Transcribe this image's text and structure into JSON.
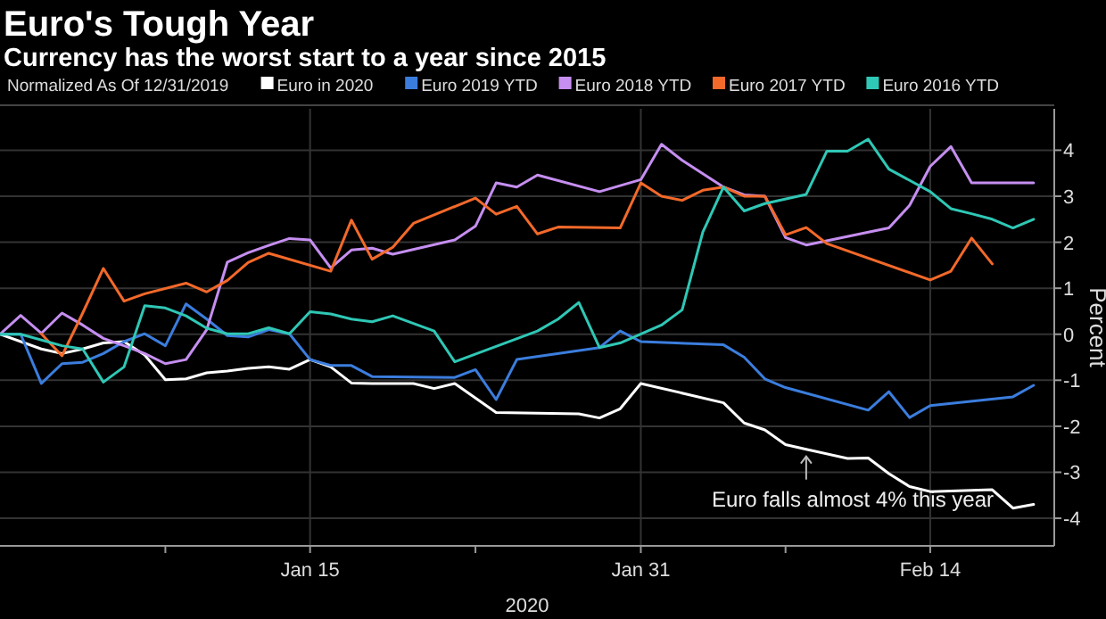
{
  "chart_data": {
    "type": "line",
    "title": "Euro's Tough Year",
    "subtitle": "Currency has the worst start to a year since 2015",
    "legend_title": "Normalized As Of 12/31/2019",
    "xlabel": "2020",
    "ylabel": "Percent",
    "legend": "top",
    "grid": true,
    "line_style": "solid",
    "xlim": [
      "2019-12-31",
      "2020-02-20"
    ],
    "xticks": [
      {
        "value": "2020-01-08",
        "label": null
      },
      {
        "value": "2020-01-15",
        "label": "Jan 15"
      },
      {
        "value": "2020-01-23",
        "label": null
      },
      {
        "value": "2020-01-31",
        "label": "Jan 31"
      },
      {
        "value": "2020-02-07",
        "label": null
      },
      {
        "value": "2020-02-14",
        "label": "Feb 14"
      }
    ],
    "ylim": [
      -4.6,
      4.9
    ],
    "yticks": [
      -4,
      -3,
      -2,
      -1,
      0,
      1,
      2,
      3,
      4
    ],
    "annotations": [
      {
        "text": "Euro falls almost 4% this year",
        "x": "2020-02-08",
        "y": -2.5
      }
    ],
    "series": [
      {
        "name": "Euro in 2020",
        "color": "#ffffff",
        "x": [
          "2019-12-31",
          "2020-01-02",
          "2020-01-03",
          "2020-01-04",
          "2020-01-05",
          "2020-01-06",
          "2020-01-07",
          "2020-01-08",
          "2020-01-09",
          "2020-01-10",
          "2020-01-11",
          "2020-01-12",
          "2020-01-13",
          "2020-01-14",
          "2020-01-15",
          "2020-01-16",
          "2020-01-17",
          "2020-01-18",
          "2020-01-20",
          "2020-01-21",
          "2020-01-22",
          "2020-01-24",
          "2020-01-28",
          "2020-01-29",
          "2020-01-30",
          "2020-01-31",
          "2020-02-04",
          "2020-02-05",
          "2020-02-06",
          "2020-02-07",
          "2020-02-08",
          "2020-02-10",
          "2020-02-11",
          "2020-02-12",
          "2020-02-13",
          "2020-02-14",
          "2020-02-17",
          "2020-02-18",
          "2020-02-19"
        ],
        "values": [
          0,
          -0.32,
          -0.42,
          -0.32,
          -0.19,
          -0.16,
          -0.45,
          -0.99,
          -0.97,
          -0.84,
          -0.8,
          -0.74,
          -0.71,
          -0.76,
          -0.55,
          -0.71,
          -1.06,
          -1.07,
          -1.07,
          -1.18,
          -1.07,
          -1.7,
          -1.73,
          -1.82,
          -1.62,
          -1.07,
          -1.49,
          -1.93,
          -2.08,
          -2.4,
          -2.5,
          -2.7,
          -2.69,
          -3.03,
          -3.31,
          -3.42,
          -3.38,
          -3.78,
          -3.7
        ]
      },
      {
        "name": "Euro 2019 YTD",
        "color": "#3b7ddd",
        "x": [
          "2019-12-31",
          "2020-01-01",
          "2020-01-02",
          "2020-01-03",
          "2020-01-04",
          "2020-01-05",
          "2020-01-06",
          "2020-01-07",
          "2020-01-08",
          "2020-01-09",
          "2020-01-10",
          "2020-01-11",
          "2020-01-12",
          "2020-01-13",
          "2020-01-14",
          "2020-01-15",
          "2020-01-16",
          "2020-01-17",
          "2020-01-18",
          "2020-01-22",
          "2020-01-23",
          "2020-01-24",
          "2020-01-25",
          "2020-01-29",
          "2020-01-30",
          "2020-01-31",
          "2020-02-04",
          "2020-02-05",
          "2020-02-06",
          "2020-02-07",
          "2020-02-11",
          "2020-02-12",
          "2020-02-13",
          "2020-02-14",
          "2020-02-18",
          "2020-02-19"
        ],
        "values": [
          0,
          0,
          -1.07,
          -0.64,
          -0.61,
          -0.42,
          -0.16,
          0.01,
          -0.25,
          0.66,
          0.33,
          -0.03,
          -0.06,
          0.1,
          0.01,
          -0.55,
          -0.68,
          -0.68,
          -0.92,
          -0.94,
          -0.77,
          -1.42,
          -0.55,
          -0.29,
          0.07,
          -0.16,
          -0.23,
          -0.5,
          -0.97,
          -1.16,
          -1.65,
          -1.25,
          -1.81,
          -1.55,
          -1.36,
          -1.11
        ]
      },
      {
        "name": "Euro 2018 YTD",
        "color": "#c58ef0",
        "x": [
          "2019-12-31",
          "2020-01-01",
          "2020-01-02",
          "2020-01-03",
          "2020-01-04",
          "2020-01-05",
          "2020-01-06",
          "2020-01-07",
          "2020-01-08",
          "2020-01-09",
          "2020-01-10",
          "2020-01-11",
          "2020-01-12",
          "2020-01-13",
          "2020-01-14",
          "2020-01-15",
          "2020-01-16",
          "2020-01-17",
          "2020-01-18",
          "2020-01-19",
          "2020-01-22",
          "2020-01-23",
          "2020-01-24",
          "2020-01-25",
          "2020-01-26",
          "2020-01-29",
          "2020-01-31",
          "2020-02-01",
          "2020-02-02",
          "2020-02-04",
          "2020-02-05",
          "2020-02-06",
          "2020-02-07",
          "2020-02-08",
          "2020-02-12",
          "2020-02-13",
          "2020-02-14",
          "2020-02-15",
          "2020-02-16",
          "2020-02-19"
        ],
        "values": [
          0,
          0.41,
          0.02,
          0.46,
          0.2,
          -0.09,
          -0.25,
          -0.42,
          -0.64,
          -0.55,
          0.1,
          1.57,
          1.77,
          1.93,
          2.08,
          2.05,
          1.44,
          1.83,
          1.87,
          1.74,
          2.05,
          2.35,
          3.29,
          3.2,
          3.46,
          3.1,
          3.36,
          4.13,
          3.78,
          3.2,
          3.03,
          3.0,
          2.1,
          1.94,
          2.31,
          2.8,
          3.65,
          4.08,
          3.29,
          3.29
        ]
      },
      {
        "name": "Euro 2017 YTD",
        "color": "#f2692a",
        "x": [
          "2020-01-02",
          "2020-01-03",
          "2020-01-04",
          "2020-01-05",
          "2020-01-06",
          "2020-01-07",
          "2020-01-09",
          "2020-01-10",
          "2020-01-11",
          "2020-01-12",
          "2020-01-13",
          "2020-01-16",
          "2020-01-17",
          "2020-01-18",
          "2020-01-19",
          "2020-01-20",
          "2020-01-23",
          "2020-01-24",
          "2020-01-25",
          "2020-01-26",
          "2020-01-27",
          "2020-01-30",
          "2020-01-31",
          "2020-02-01",
          "2020-02-02",
          "2020-02-03",
          "2020-02-04",
          "2020-02-05",
          "2020-02-06",
          "2020-02-07",
          "2020-02-08",
          "2020-02-09",
          "2020-02-14",
          "2020-02-15",
          "2020-02-16",
          "2020-02-17"
        ],
        "values": [
          0.01,
          -0.47,
          0.46,
          1.43,
          0.72,
          0.88,
          1.11,
          0.92,
          1.17,
          1.56,
          1.76,
          1.37,
          2.48,
          1.63,
          1.89,
          2.41,
          2.96,
          2.61,
          2.78,
          2.18,
          2.33,
          2.31,
          3.29,
          3.0,
          2.91,
          3.13,
          3.2,
          3.0,
          3.0,
          2.16,
          2.32,
          1.97,
          1.18,
          1.37,
          2.09,
          1.53
        ]
      },
      {
        "name": "Euro 2016 YTD",
        "color": "#2fc7b5",
        "x": [
          "2019-12-31",
          "2020-01-01",
          "2020-01-03",
          "2020-01-04",
          "2020-01-05",
          "2020-01-06",
          "2020-01-07",
          "2020-01-08",
          "2020-01-09",
          "2020-01-10",
          "2020-01-11",
          "2020-01-12",
          "2020-01-13",
          "2020-01-14",
          "2020-01-15",
          "2020-01-16",
          "2020-01-17",
          "2020-01-18",
          "2020-01-19",
          "2020-01-21",
          "2020-01-22",
          "2020-01-26",
          "2020-01-27",
          "2020-01-28",
          "2020-01-29",
          "2020-01-30",
          "2020-02-01",
          "2020-02-02",
          "2020-02-03",
          "2020-02-04",
          "2020-02-05",
          "2020-02-06",
          "2020-02-08",
          "2020-02-09",
          "2020-02-10",
          "2020-02-11",
          "2020-02-12",
          "2020-02-14",
          "2020-02-15",
          "2020-02-16",
          "2020-02-17",
          "2020-02-18",
          "2020-02-19"
        ],
        "values": [
          0,
          0,
          -0.25,
          -0.32,
          -1.04,
          -0.71,
          0.62,
          0.57,
          0.4,
          0.13,
          0.01,
          0.01,
          0.14,
          0.01,
          0.49,
          0.44,
          0.33,
          0.27,
          0.4,
          0.07,
          -0.6,
          0.07,
          0.33,
          0.69,
          -0.29,
          -0.19,
          0.2,
          0.53,
          2.22,
          3.2,
          2.68,
          2.84,
          3.04,
          3.98,
          3.98,
          4.24,
          3.59,
          3.1,
          2.73,
          2.62,
          2.5,
          2.31,
          2.5
        ]
      }
    ]
  }
}
